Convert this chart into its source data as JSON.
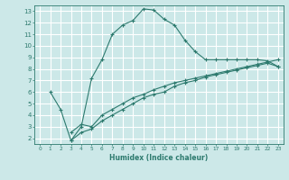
{
  "xlabel": "Humidex (Indice chaleur)",
  "ylabel": "",
  "bg_color": "#cce8e8",
  "grid_color": "#ffffff",
  "line_color": "#2d7a6e",
  "xlim": [
    -0.5,
    23.5
  ],
  "ylim": [
    1.5,
    13.5
  ],
  "xticks": [
    0,
    1,
    2,
    3,
    4,
    5,
    6,
    7,
    8,
    9,
    10,
    11,
    12,
    13,
    14,
    15,
    16,
    17,
    18,
    19,
    20,
    21,
    22,
    23
  ],
  "yticks": [
    2,
    3,
    4,
    5,
    6,
    7,
    8,
    9,
    10,
    11,
    12,
    13
  ],
  "line1_x": [
    1,
    2,
    3,
    4,
    5,
    6,
    7,
    8,
    9,
    10,
    11,
    12,
    13,
    14,
    15,
    16,
    17,
    18,
    19,
    20,
    21,
    22,
    23
  ],
  "line1_y": [
    6,
    4.5,
    1.8,
    3.0,
    7.2,
    8.8,
    11.0,
    11.8,
    12.2,
    13.2,
    13.1,
    12.3,
    11.8,
    10.5,
    9.5,
    8.8,
    8.8,
    8.8,
    8.8,
    8.8,
    8.8,
    8.7,
    8.2
  ],
  "line2_x": [
    3,
    4,
    5,
    6,
    7,
    8,
    9,
    10,
    11,
    12,
    13,
    14,
    15,
    16,
    17,
    18,
    19,
    20,
    21,
    22,
    23
  ],
  "line2_y": [
    2.5,
    3.2,
    3.0,
    4.0,
    4.5,
    5.0,
    5.5,
    5.8,
    6.2,
    6.5,
    6.8,
    7.0,
    7.2,
    7.4,
    7.6,
    7.8,
    8.0,
    8.2,
    8.4,
    8.6,
    8.8
  ],
  "line3_x": [
    3,
    4,
    5,
    6,
    7,
    8,
    9,
    10,
    11,
    12,
    13,
    14,
    15,
    16,
    17,
    18,
    19,
    20,
    21,
    22,
    23
  ],
  "line3_y": [
    1.8,
    2.5,
    2.8,
    3.5,
    4.0,
    4.5,
    5.0,
    5.5,
    5.8,
    6.0,
    6.5,
    6.8,
    7.0,
    7.3,
    7.5,
    7.7,
    7.9,
    8.1,
    8.3,
    8.5,
    8.2
  ]
}
